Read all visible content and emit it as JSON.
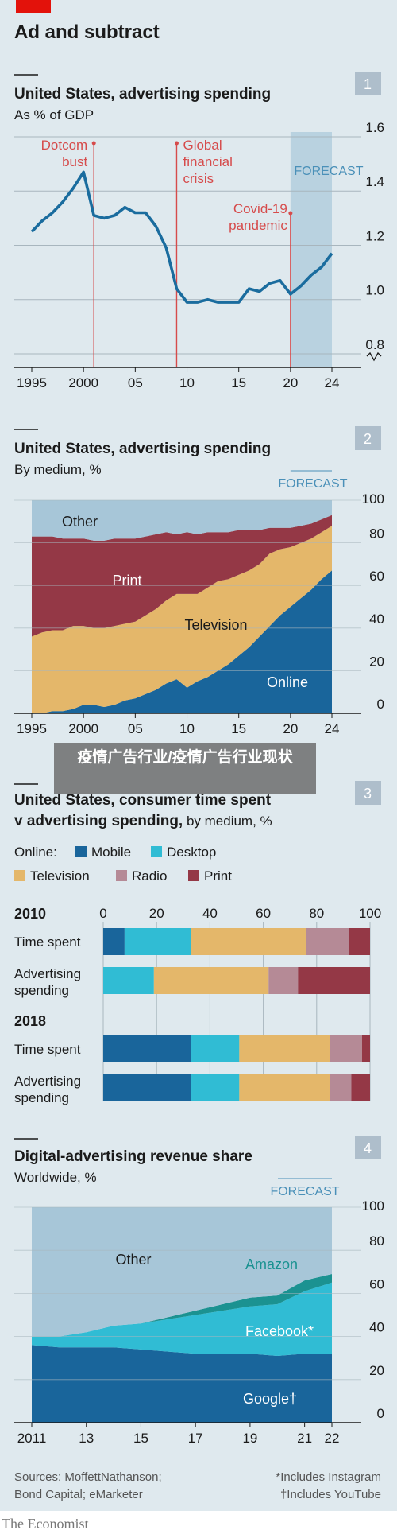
{
  "header": {
    "title": "Ad and subtract",
    "accent": "#e3120b"
  },
  "watermark": "疫情广告行业/疫情广告行业现状",
  "publisher": "The Economist",
  "colors": {
    "bg": "#dfe9ee",
    "line": "#1a6c9e",
    "red": "#d64b4b",
    "forecast": "#b9d2e0",
    "forecast_text": "#4a90b8",
    "other": "#a7c6d8",
    "print": "#943846",
    "television": "#e4b76a",
    "online": "#19659b",
    "mobile": "#19659b",
    "desktop": "#30bcd4",
    "radio": "#b58a96",
    "amazon": "#1b9291",
    "facebook": "#30bcd4",
    "google": "#19659b"
  },
  "chart_data": [
    {
      "type": "line",
      "index": "1",
      "title": "United States, advertising spending",
      "subtitle": "As % of GDP",
      "x_tick_labels": [
        "1995",
        "2000",
        "05",
        "10",
        "15",
        "20",
        "24"
      ],
      "y_tick_labels": [
        "1.6",
        "1.4",
        "1.2",
        "1.0",
        "0.8"
      ],
      "ylim": [
        0.75,
        1.6
      ],
      "xlim": [
        1995,
        2024
      ],
      "forecast": {
        "label": "FORECAST",
        "from": 2020,
        "to": 2024
      },
      "annotations": [
        {
          "x": 2001,
          "text": [
            "Dotcom",
            "bust"
          ]
        },
        {
          "x": 2009,
          "text": [
            "Global",
            "financial",
            "crisis"
          ]
        },
        {
          "x": 2020,
          "text": [
            "Covid-19",
            "pandemic"
          ]
        }
      ],
      "x": [
        1995,
        1996,
        1997,
        1998,
        1999,
        2000,
        2001,
        2002,
        2003,
        2004,
        2005,
        2006,
        2007,
        2008,
        2009,
        2010,
        2011,
        2012,
        2013,
        2014,
        2015,
        2016,
        2017,
        2018,
        2019,
        2020,
        2021,
        2022,
        2023,
        2024
      ],
      "values": [
        1.25,
        1.29,
        1.32,
        1.36,
        1.41,
        1.47,
        1.31,
        1.3,
        1.31,
        1.34,
        1.32,
        1.32,
        1.27,
        1.19,
        1.04,
        0.99,
        0.99,
        1.0,
        0.99,
        0.99,
        0.99,
        1.04,
        1.03,
        1.06,
        1.07,
        1.02,
        1.05,
        1.09,
        1.12,
        1.17
      ]
    },
    {
      "type": "area",
      "index": "2",
      "title": "United States, advertising spending",
      "subtitle": "By medium, %",
      "x_tick_labels": [
        "1995",
        "2000",
        "05",
        "10",
        "15",
        "20",
        "24"
      ],
      "y_tick_labels": [
        "100",
        "80",
        "60",
        "40",
        "20",
        "0"
      ],
      "ylim": [
        0,
        100
      ],
      "xlim": [
        1995,
        2024
      ],
      "forecast": {
        "label": "FORECAST",
        "from": 2020,
        "to": 2024
      },
      "x": [
        1995,
        1996,
        1997,
        1998,
        1999,
        2000,
        2001,
        2002,
        2003,
        2004,
        2005,
        2006,
        2007,
        2008,
        2009,
        2010,
        2011,
        2012,
        2013,
        2014,
        2015,
        2016,
        2017,
        2018,
        2019,
        2020,
        2021,
        2022,
        2023,
        2024
      ],
      "series": [
        {
          "name": "Online",
          "values": [
            0,
            0,
            1,
            1,
            2,
            4,
            4,
            3,
            4,
            6,
            7,
            9,
            11,
            14,
            16,
            12,
            15,
            17,
            20,
            23,
            27,
            31,
            36,
            41,
            46,
            50,
            54,
            58,
            63,
            67
          ]
        },
        {
          "name": "Television",
          "values": [
            36,
            38,
            38,
            38,
            39,
            37,
            36,
            37,
            37,
            36,
            36,
            37,
            38,
            39,
            40,
            44,
            41,
            42,
            42,
            40,
            38,
            36,
            34,
            34,
            31,
            28,
            26,
            24,
            22,
            21
          ]
        },
        {
          "name": "Print",
          "values": [
            47,
            45,
            44,
            43,
            41,
            41,
            41,
            41,
            41,
            40,
            39,
            37,
            35,
            32,
            28,
            29,
            28,
            26,
            23,
            22,
            21,
            19,
            16,
            12,
            10,
            9,
            8,
            7,
            6,
            5
          ]
        },
        {
          "name": "Other",
          "values": [
            17,
            17,
            17,
            18,
            18,
            18,
            19,
            19,
            18,
            18,
            18,
            17,
            16,
            15,
            16,
            15,
            16,
            15,
            15,
            15,
            14,
            14,
            14,
            13,
            13,
            13,
            12,
            11,
            9,
            7
          ]
        }
      ]
    },
    {
      "type": "bar",
      "index": "3",
      "title": [
        "United States, consumer time spent",
        "v advertising spending,"
      ],
      "subtitle": "by medium, %",
      "legend_prefix": "Online:",
      "legend": [
        "Mobile",
        "Desktop",
        "Television",
        "Radio",
        "Print"
      ],
      "x_tick_labels": [
        "0",
        "20",
        "40",
        "60",
        "80",
        "100"
      ],
      "xlim": [
        0,
        100
      ],
      "groups": [
        {
          "year": "2010",
          "rows": [
            {
              "label": [
                "Time spent"
              ],
              "values": [
                8,
                25,
                43,
                16,
                8
              ]
            },
            {
              "label": [
                "Advertising",
                "spending"
              ],
              "values": [
                0,
                19,
                43,
                11,
                27
              ]
            }
          ]
        },
        {
          "year": "2018",
          "rows": [
            {
              "label": [
                "Time spent"
              ],
              "values": [
                33,
                18,
                34,
                12,
                3
              ]
            },
            {
              "label": [
                "Advertising",
                "spending"
              ],
              "values": [
                33,
                18,
                34,
                8,
                7
              ]
            }
          ]
        }
      ]
    },
    {
      "type": "area",
      "index": "4",
      "title": "Digital-advertising revenue share",
      "subtitle": "Worldwide, %",
      "x_tick_labels": [
        "2011",
        "13",
        "15",
        "17",
        "19",
        "21",
        "22"
      ],
      "y_tick_labels": [
        "100",
        "80",
        "60",
        "40",
        "20",
        "0"
      ],
      "ylim": [
        0,
        100
      ],
      "xlim": [
        2011,
        2022
      ],
      "forecast": {
        "label": "FORECAST",
        "from": 2020,
        "to": 2022
      },
      "x": [
        2011,
        2012,
        2013,
        2014,
        2015,
        2016,
        2017,
        2018,
        2019,
        2020,
        2021,
        2022
      ],
      "series": [
        {
          "name": "Google†",
          "values": [
            36,
            35,
            35,
            35,
            34,
            33,
            32,
            32,
            32,
            31,
            32,
            32
          ]
        },
        {
          "name": "Facebook*",
          "values": [
            4,
            5,
            7,
            10,
            12,
            15,
            18,
            20,
            22,
            24,
            29,
            33
          ]
        },
        {
          "name": "Amazon",
          "values": [
            0,
            0,
            0,
            0,
            0,
            1,
            2,
            3,
            4,
            4,
            5,
            4
          ]
        },
        {
          "name": "Other",
          "values": [
            60,
            60,
            58,
            55,
            54,
            51,
            48,
            45,
            42,
            41,
            34,
            31
          ]
        }
      ],
      "sources": [
        "Sources: MoffettNathanson;",
        "Bond Capital; eMarketer"
      ],
      "notes": [
        "*Includes Instagram",
        "†Includes YouTube"
      ]
    }
  ]
}
